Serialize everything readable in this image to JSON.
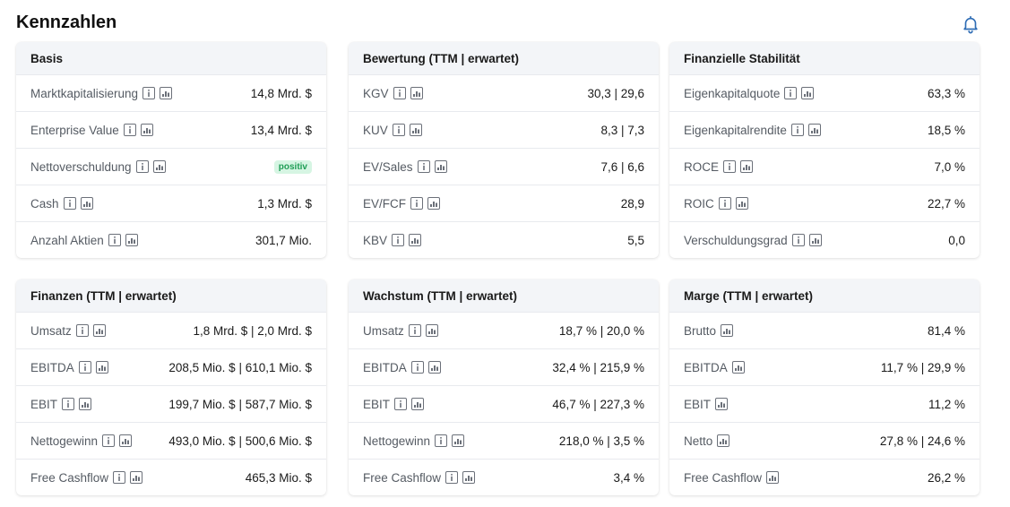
{
  "page": {
    "title": "Kennzahlen"
  },
  "colors": {
    "accent": "#2f6db5",
    "positive_text": "#1f9d55",
    "positive_bg": "#d6f5e3",
    "header_bg": "#f3f5f8"
  },
  "icons": {
    "notifications": "bell-icon",
    "info": "info-icon",
    "chart": "chart-icon"
  },
  "cards": [
    {
      "title": "Basis",
      "rows": [
        {
          "label": "Marktkapitalisierung",
          "value": "14,8 Mrd. $",
          "info": true
        },
        {
          "label": "Enterprise Value",
          "value": "13,4 Mrd. $",
          "info": true
        },
        {
          "label": "Nettoverschuldung",
          "value": "positiv",
          "info": true,
          "badge": true
        },
        {
          "label": "Cash",
          "value": "1,3 Mrd. $",
          "info": true
        },
        {
          "label": "Anzahl Aktien",
          "value": "301,7 Mio.",
          "info": true
        }
      ]
    },
    {
      "title": "Bewertung (TTM | erwartet)",
      "rows": [
        {
          "label": "KGV",
          "value": "30,3 | 29,6",
          "info": true
        },
        {
          "label": "KUV",
          "value": "8,3 | 7,3",
          "info": true
        },
        {
          "label": "EV/Sales",
          "value": "7,6 | 6,6",
          "info": true
        },
        {
          "label": "EV/FCF",
          "value": "28,9",
          "info": true
        },
        {
          "label": "KBV",
          "value": "5,5",
          "info": true
        }
      ]
    },
    {
      "title": "Finanzielle Stabilität",
      "rows": [
        {
          "label": "Eigenkapitalquote",
          "value": "63,3 %",
          "info": true
        },
        {
          "label": "Eigenkapitalrendite",
          "value": "18,5 %",
          "info": true
        },
        {
          "label": "ROCE",
          "value": "7,0 %",
          "info": true
        },
        {
          "label": "ROIC",
          "value": "22,7 %",
          "info": true
        },
        {
          "label": "Verschuldungsgrad",
          "value": "0,0",
          "info": true
        }
      ]
    },
    {
      "title": "Finanzen (TTM | erwartet)",
      "rows": [
        {
          "label": "Umsatz",
          "value": "1,8 Mrd. $ | 2,0 Mrd. $",
          "info": true
        },
        {
          "label": "EBITDA",
          "value": "208,5 Mio. $ | 610,1 Mio. $",
          "info": true
        },
        {
          "label": "EBIT",
          "value": "199,7 Mio. $ | 587,7 Mio. $",
          "info": true
        },
        {
          "label": "Nettogewinn",
          "value": "493,0 Mio. $ | 500,6 Mio. $",
          "info": true
        },
        {
          "label": "Free Cashflow",
          "value": "465,3 Mio. $",
          "info": true
        }
      ]
    },
    {
      "title": "Wachstum (TTM | erwartet)",
      "rows": [
        {
          "label": "Umsatz",
          "value": "18,7 % | 20,0 %",
          "info": true
        },
        {
          "label": "EBITDA",
          "value": "32,4 % | 215,9 %",
          "info": true
        },
        {
          "label": "EBIT",
          "value": "46,7 % | 227,3 %",
          "info": true
        },
        {
          "label": "Nettogewinn",
          "value": "218,0 % | 3,5 %",
          "info": true
        },
        {
          "label": "Free Cashflow",
          "value": "3,4 %",
          "info": true
        }
      ]
    },
    {
      "title": "Marge (TTM | erwartet)",
      "rows": [
        {
          "label": "Brutto",
          "value": "81,4 %",
          "info": false
        },
        {
          "label": "EBITDA",
          "value": "11,7 % | 29,9 %",
          "info": false
        },
        {
          "label": "EBIT",
          "value": "11,2 %",
          "info": false
        },
        {
          "label": "Netto",
          "value": "27,8 % | 24,6 %",
          "info": false
        },
        {
          "label": "Free Cashflow",
          "value": "26,2 %",
          "info": false
        }
      ]
    }
  ]
}
